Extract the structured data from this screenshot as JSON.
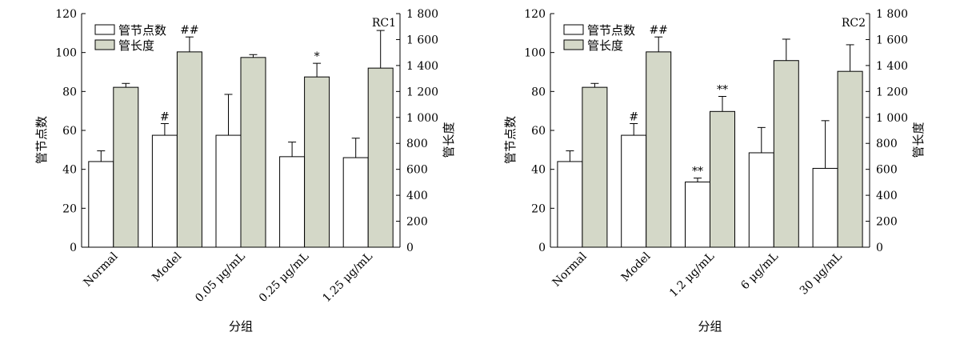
{
  "chart_data": [
    {
      "type": "bar",
      "panel_label": "RC1",
      "categories": [
        "Normal",
        "Model",
        "0.05 μg/mL",
        "0.25 μg/mL",
        "1.25 μg/mL"
      ],
      "xlabel": "分组",
      "ylabel": "管节点数",
      "y2label": "管长度",
      "ylim": [
        0,
        120
      ],
      "y2lim": [
        0,
        1800
      ],
      "yticks": [
        "0",
        "20",
        "40",
        "60",
        "80",
        "100",
        "120"
      ],
      "y2ticks": [
        "0",
        "200",
        "400",
        "600",
        "800",
        "1 000",
        "1 200",
        "1 400",
        "1 600",
        "1 800"
      ],
      "legend_position": "top-left",
      "series": [
        {
          "name": "管节点数",
          "axis": "left",
          "color": "#ffffff",
          "values": [
            44,
            57.5,
            57.5,
            46.5,
            46
          ],
          "errors": [
            5.5,
            6,
            21,
            7.5,
            10
          ],
          "annotations": [
            "",
            "#",
            "",
            "",
            ""
          ]
        },
        {
          "name": "管长度",
          "axis": "right",
          "color": "#d4d8c8",
          "values": [
            1232,
            1505,
            1462,
            1312,
            1380
          ],
          "errors": [
            30,
            115,
            22,
            105,
            290
          ],
          "annotations": [
            "",
            "##",
            "",
            "*",
            ""
          ]
        }
      ]
    },
    {
      "type": "bar",
      "panel_label": "RC2",
      "categories": [
        "Normal",
        "Model",
        "1.2 μg/mL",
        "6 μg/mL",
        "30 μg/mL"
      ],
      "xlabel": "分组",
      "ylabel": "管节点数",
      "y2label": "管长度",
      "ylim": [
        0,
        120
      ],
      "y2lim": [
        0,
        1800
      ],
      "yticks": [
        "0",
        "20",
        "40",
        "60",
        "80",
        "100",
        "120"
      ],
      "y2ticks": [
        "0",
        "200",
        "400",
        "600",
        "800",
        "1 000",
        "1 200",
        "1 400",
        "1 600",
        "1 800"
      ],
      "legend_position": "top-left",
      "series": [
        {
          "name": "管节点数",
          "axis": "left",
          "color": "#ffffff",
          "values": [
            44,
            57.5,
            33.5,
            48.5,
            40.5
          ],
          "errors": [
            5.5,
            6,
            2,
            13,
            24.5
          ],
          "annotations": [
            "",
            "#",
            "**",
            "",
            ""
          ]
        },
        {
          "name": "管长度",
          "axis": "right",
          "color": "#d4d8c8",
          "values": [
            1232,
            1505,
            1046,
            1438,
            1355
          ],
          "errors": [
            30,
            115,
            116,
            165,
            205
          ],
          "annotations": [
            "",
            "##",
            "**",
            "",
            ""
          ]
        }
      ]
    }
  ]
}
